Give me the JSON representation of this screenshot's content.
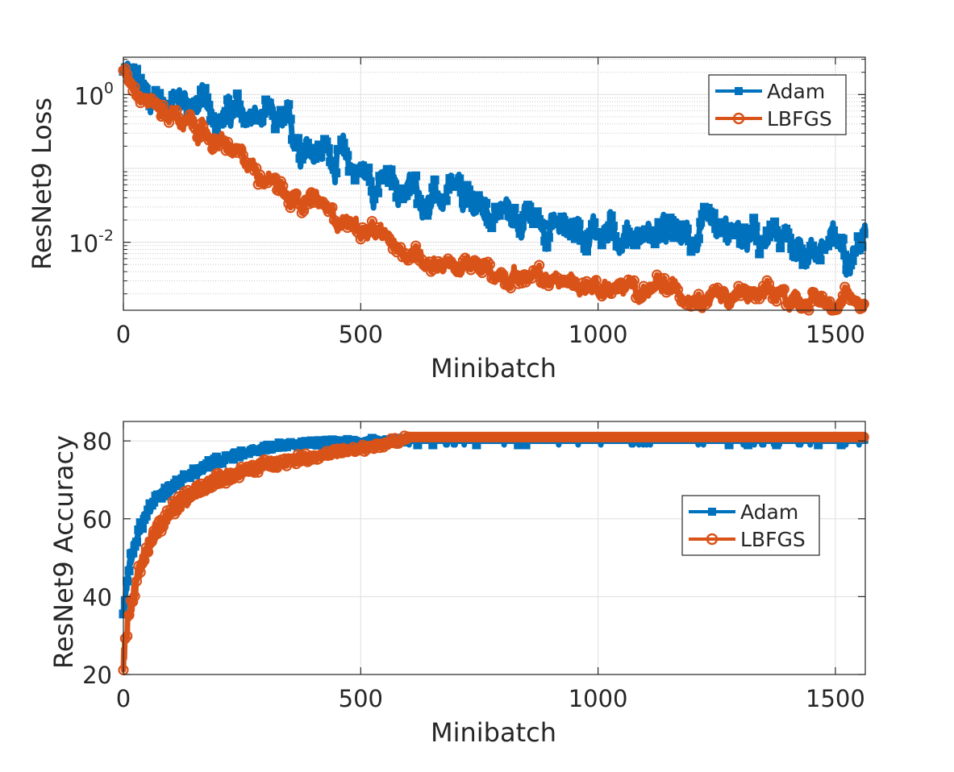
{
  "colors": {
    "adam": "#0072BD",
    "lbfgs": "#D95319",
    "axis": "#262626",
    "grid": "#dfdfdf",
    "minor_grid": "#c8c8c8"
  },
  "chart_data": [
    {
      "type": "line",
      "yscale": "log",
      "xlabel": "Minibatch",
      "ylabel": "ResNet9 Loss",
      "xlim": [
        0,
        1563
      ],
      "ylim": [
        0.0012,
        3.2
      ],
      "x_ticks": [
        0,
        500,
        1000,
        1500
      ],
      "x_tick_labels": [
        "0",
        "500",
        "1000",
        "1500"
      ],
      "y_ticks": [
        1,
        0.01
      ],
      "y_tick_labels": [
        {
          "base": "10",
          "exp": "0"
        },
        {
          "base": "10",
          "exp": "-2"
        }
      ],
      "grid": true,
      "legend": {
        "location": "top-right",
        "entries": [
          "Adam",
          "LBFGS"
        ]
      },
      "series": [
        {
          "name": "Adam",
          "marker": "square",
          "x": [
            0,
            50,
            100,
            150,
            200,
            250,
            300,
            350,
            400,
            450,
            500,
            550,
            600,
            650,
            700,
            750,
            800,
            850,
            900,
            950,
            1000,
            1050,
            1100,
            1150,
            1200,
            1250,
            1300,
            1350,
            1400,
            1450,
            1500,
            1563
          ],
          "y": [
            2.0,
            1.1,
            0.85,
            0.7,
            0.6,
            0.5,
            0.42,
            0.3,
            0.22,
            0.15,
            0.09,
            0.06,
            0.05,
            0.04,
            0.035,
            0.03,
            0.025,
            0.02,
            0.018,
            0.016,
            0.015,
            0.014,
            0.013,
            0.012,
            0.012,
            0.011,
            0.011,
            0.01,
            0.0095,
            0.0085,
            0.009,
            0.011
          ]
        },
        {
          "name": "LBFGS",
          "marker": "hexagram",
          "x": [
            0,
            50,
            100,
            150,
            200,
            250,
            300,
            350,
            400,
            450,
            500,
            550,
            600,
            650,
            700,
            750,
            800,
            850,
            900,
            950,
            1000,
            1050,
            1100,
            1150,
            1200,
            1250,
            1300,
            1350,
            1400,
            1450,
            1500,
            1563
          ],
          "y": [
            2.3,
            0.9,
            0.55,
            0.35,
            0.22,
            0.13,
            0.08,
            0.05,
            0.035,
            0.022,
            0.015,
            0.0105,
            0.0075,
            0.0058,
            0.0048,
            0.0042,
            0.0038,
            0.0034,
            0.003,
            0.0028,
            0.0026,
            0.0024,
            0.0023,
            0.0022,
            0.0021,
            0.002,
            0.0019,
            0.0018,
            0.0017,
            0.0017,
            0.0016,
            0.0016
          ]
        }
      ]
    },
    {
      "type": "line",
      "yscale": "linear",
      "xlabel": "Minibatch",
      "ylabel": "ResNet9 Accuracy",
      "xlim": [
        0,
        1563
      ],
      "ylim": [
        20,
        85
      ],
      "x_ticks": [
        0,
        500,
        1000,
        1500
      ],
      "x_tick_labels": [
        "0",
        "500",
        "1000",
        "1500"
      ],
      "y_ticks": [
        20,
        40,
        60,
        80
      ],
      "y_tick_labels": [
        "20",
        "40",
        "60",
        "80"
      ],
      "grid": true,
      "legend": {
        "location": "center-right",
        "entries": [
          "Adam",
          "LBFGS"
        ]
      },
      "series": [
        {
          "name": "Adam",
          "marker": "square",
          "x": [
            0,
            10,
            20,
            30,
            40,
            50,
            70,
            100,
            150,
            200,
            250,
            300,
            400,
            500,
            600,
            700,
            800,
            900,
            1000,
            1100,
            1200,
            1300,
            1400,
            1500,
            1563
          ],
          "y": [
            36,
            46,
            52,
            56,
            59,
            62,
            65,
            68,
            72,
            75,
            77,
            78.5,
            79.5,
            80,
            80.3,
            80.3,
            80.3,
            80.3,
            80.3,
            80.3,
            80.3,
            80.3,
            80.3,
            80.3,
            80.3
          ]
        },
        {
          "name": "LBFGS",
          "marker": "hexagram",
          "x": [
            0,
            5,
            10,
            20,
            30,
            40,
            50,
            70,
            100,
            150,
            200,
            250,
            300,
            400,
            500,
            580,
            600,
            700,
            800,
            900,
            1000,
            1100,
            1200,
            1300,
            1400,
            1500,
            1563
          ],
          "y": [
            23,
            30,
            34,
            40,
            45,
            49,
            52,
            57,
            62,
            67,
            70,
            72,
            74,
            76,
            78,
            80,
            81,
            81,
            81,
            81,
            81,
            81,
            81,
            81,
            81,
            81,
            81
          ]
        }
      ]
    }
  ]
}
